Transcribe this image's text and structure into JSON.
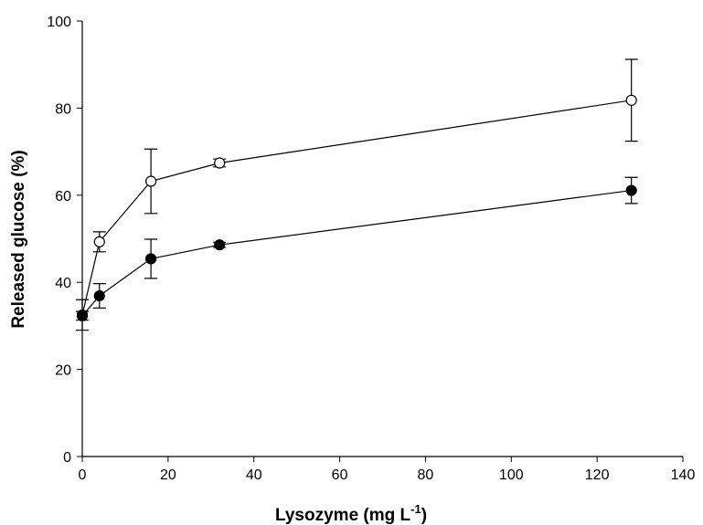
{
  "chart_data": {
    "type": "line",
    "ylabel": "Released glucose (%)",
    "xlabel": [
      "Lysozyme (mg L",
      "-1",
      ")"
    ],
    "x": [
      0,
      4,
      16,
      32,
      128
    ],
    "series": [
      {
        "color": "#ffffff",
        "values": [
          32.5,
          49.3,
          63.2,
          67.4,
          81.8
        ],
        "errors": [
          3.5,
          2.3,
          7.4,
          0.9,
          9.4
        ]
      },
      {
        "color": "#000000",
        "values": [
          32.3,
          36.9,
          45.4,
          48.6,
          61.1
        ],
        "errors": [
          1.0,
          2.8,
          4.5,
          0.6,
          3.0
        ]
      }
    ],
    "xlim": [
      0,
      140
    ],
    "xticks": [
      0,
      20,
      40,
      60,
      80,
      100,
      120,
      140
    ],
    "ylim": [
      0,
      100
    ],
    "yticks": [
      0,
      20,
      40,
      60,
      80,
      100
    ]
  }
}
